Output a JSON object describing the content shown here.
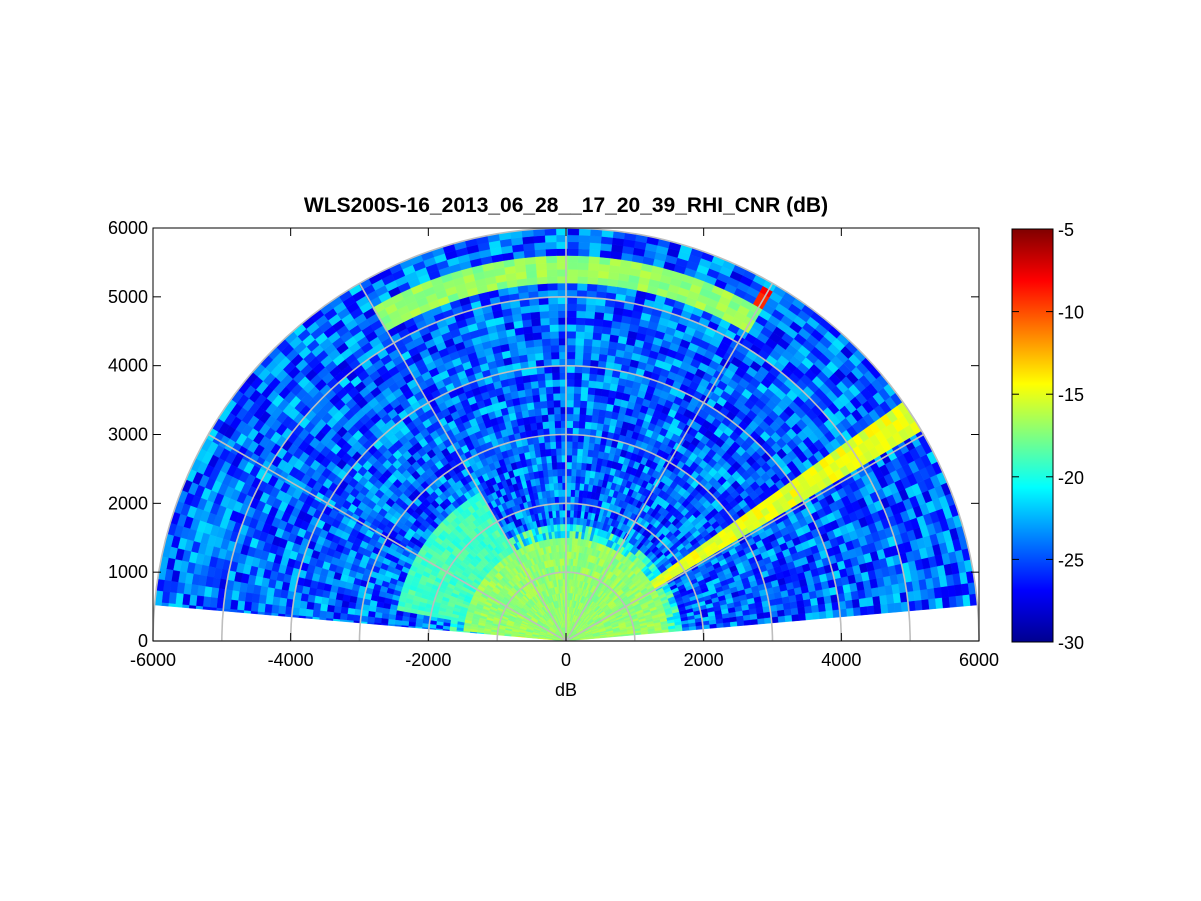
{
  "chart_data": {
    "type": "heatmap",
    "plot_kind": "polar RHI scan (range-height indicator)",
    "title": "WLS200S-16_2013_06_28__17_20_39_RHI_CNR (dB)",
    "xlabel": "dB",
    "ylabel": "",
    "xlim": [
      -6000,
      6000
    ],
    "ylim": [
      0,
      6000
    ],
    "x_ticks": [
      "-6000",
      "-4000",
      "-2000",
      "0",
      "2000",
      "4000",
      "6000"
    ],
    "y_ticks": [
      "0",
      "1000",
      "2000",
      "3000",
      "4000",
      "5000",
      "6000"
    ],
    "polar_grid": {
      "range_rings": [
        1000,
        2000,
        3000,
        4000,
        5000,
        6000
      ],
      "angle_spokes_deg": [
        0,
        30,
        60,
        90,
        120,
        150,
        180
      ]
    },
    "colorbar": {
      "colormap": "jet",
      "min": -30,
      "max": -5,
      "ticks": [
        "-5",
        "-10",
        "-15",
        "-20",
        "-25",
        "-30"
      ]
    },
    "scan": {
      "max_range": 6000,
      "elevation_range_deg": [
        5,
        175
      ],
      "features": [
        {
          "description": "strong return band",
          "elevation_deg": [
            30,
            36
          ],
          "range": [
            300,
            6000
          ],
          "cnr_db": -15
        },
        {
          "description": "hot spots near top right",
          "elevation_deg": [
            59,
            61
          ],
          "range": [
            5400,
            5900
          ],
          "cnr_db": -9
        },
        {
          "description": "near-ground layer",
          "elevation_deg": [
            5,
            175
          ],
          "range": [
            0,
            1500
          ],
          "cnr_db": -17
        },
        {
          "description": "mid-level layer",
          "elevation_deg": [
            120,
            170
          ],
          "range": [
            1500,
            2500
          ],
          "cnr_db": -19
        },
        {
          "description": "upper layer",
          "elevation_deg": [
            60,
            120
          ],
          "range": [
            5200,
            5600
          ],
          "cnr_db": -17
        }
      ]
    }
  }
}
